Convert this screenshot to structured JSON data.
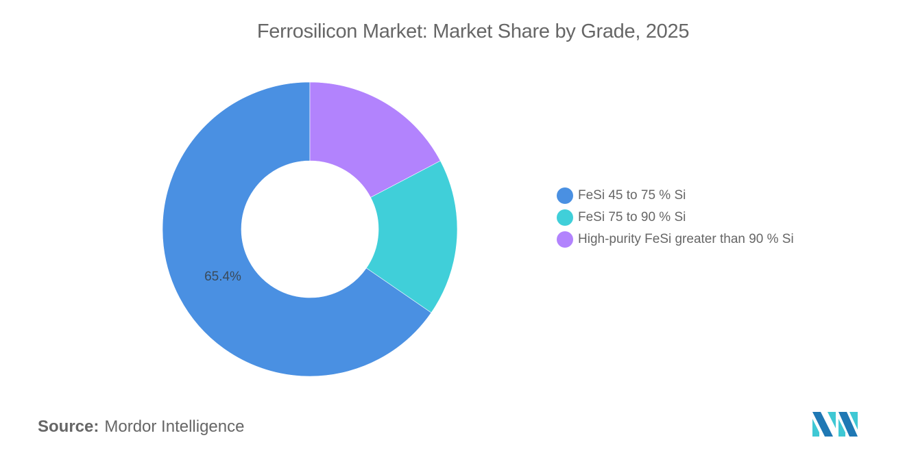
{
  "title": "Ferrosilicon Market: Market Share by Grade, 2025",
  "legend": [
    {
      "label": "FeSi 45 to 75 % Si",
      "color": "#4A90E2"
    },
    {
      "label": "FeSi 75 to 90 % Si",
      "color": "#40CFD9"
    },
    {
      "label": "High-purity FeSi greater than 90 % Si",
      "color": "#B283FD"
    }
  ],
  "slice_label": "65.4%",
  "source": {
    "key": "Source:",
    "value": "Mordor Intelligence"
  },
  "logo": {
    "icon": "mordor-intelligence-logo",
    "colors": [
      "#1F78B4",
      "#3FC8D4"
    ]
  },
  "chart_data": {
    "type": "pie",
    "variant": "donut",
    "title": "Ferrosilicon Market: Market Share by Grade, 2025",
    "categories": [
      "FeSi 45 to 75 % Si",
      "FeSi 75 to 90 % Si",
      "High-purity FeSi greater than 90 % Si"
    ],
    "values": [
      65.4,
      17.3,
      17.3
    ],
    "unit": "%",
    "colors": [
      "#4A90E2",
      "#40CFD9",
      "#B283FD"
    ],
    "data_labels": [
      {
        "category": "FeSi 45 to 75 % Si",
        "text": "65.4%"
      }
    ],
    "legend_position": "right",
    "source": "Mordor Intelligence"
  }
}
